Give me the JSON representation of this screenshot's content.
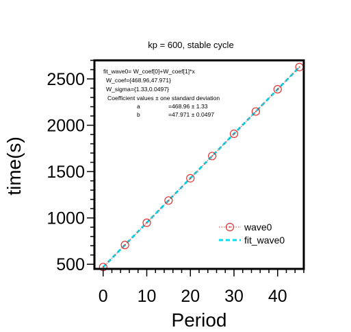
{
  "chart_data": {
    "type": "scatter",
    "title": "kp = 600, stable cycle",
    "xlabel": "Period",
    "ylabel": "time(s)",
    "xlim": [
      -2,
      46
    ],
    "ylim": [
      450,
      2700
    ],
    "x_ticks": [
      0,
      10,
      20,
      30,
      40
    ],
    "y_ticks": [
      500,
      1000,
      1500,
      2000,
      2500
    ],
    "x_minor_step": 2,
    "y_minor_step": 100,
    "grid": false,
    "legend_position": "bottom-right",
    "series": [
      {
        "name": "wave0",
        "kind": "markers",
        "marker": "circle-with-dot",
        "line_style": "dotted",
        "color": "#e03030",
        "x": [
          0,
          5,
          10,
          15,
          20,
          25,
          30,
          35,
          40,
          45
        ],
        "y": [
          470,
          708,
          948,
          1188,
          1428,
          1668,
          1908,
          2148,
          2388,
          2628
        ]
      },
      {
        "name": "fit_wave0",
        "kind": "line",
        "line_style": "dashed",
        "color": "#00e0f0",
        "intercept": 468.96,
        "slope": 47.971,
        "x_range": [
          0,
          45
        ]
      }
    ],
    "annotation": {
      "lines": [
        "fit_wave0= W_coef[0]+W_coef[1]*x",
        "W_coef={468.96,47.971}",
        "W_sigma={1.33,0.0497}",
        "Coefficient values ± one standard deviation"
      ],
      "rows": [
        {
          "name": "a",
          "value": "=468.96 ± 1.33"
        },
        {
          "name": "b",
          "value": "=47.971 ± 0.0497"
        }
      ]
    }
  }
}
